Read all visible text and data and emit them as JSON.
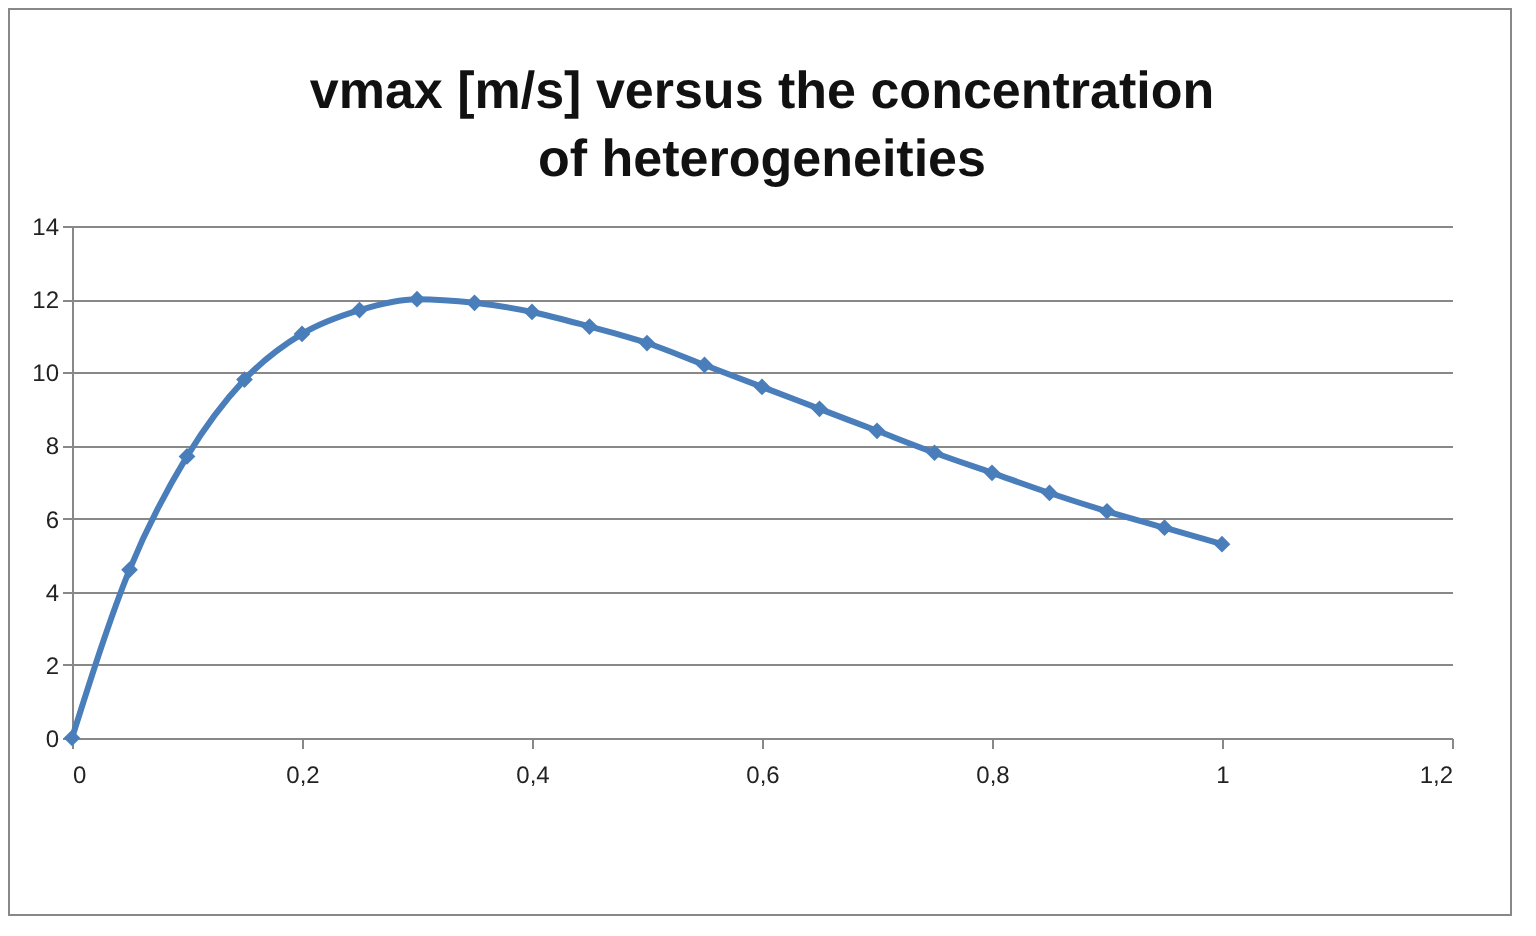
{
  "chart_data": {
    "type": "line",
    "title": "vmax [m/s] versus the concentration of heterogeneities",
    "x": [
      0,
      0.05,
      0.1,
      0.15,
      0.2,
      0.25,
      0.3,
      0.35,
      0.4,
      0.45,
      0.5,
      0.55,
      0.6,
      0.65,
      0.7,
      0.75,
      0.8,
      0.85,
      0.9,
      0.95,
      1
    ],
    "series": [
      {
        "color": "#4a7ebb",
        "values": [
          0,
          4.6,
          7.7,
          9.8,
          11.05,
          11.7,
          12,
          11.9,
          11.65,
          11.25,
          10.8,
          10.2,
          9.6,
          9,
          8.4,
          7.8,
          7.25,
          6.7,
          6.2,
          5.75,
          5.3
        ]
      }
    ],
    "xlim": [
      0,
      1.2
    ],
    "xticks": [
      0,
      {
        "value": 0.2,
        "label": "0,2"
      },
      {
        "value": 0.4,
        "label": "0,4"
      },
      {
        "value": 0.6,
        "label": "0,6"
      },
      {
        "value": 0.8,
        "label": "0,8"
      },
      1,
      {
        "value": 1.2,
        "label": "1,2"
      }
    ],
    "ylim": [
      0,
      14
    ],
    "yticks": [
      0,
      2,
      4,
      6,
      8,
      10,
      12,
      14
    ],
    "grid": "y",
    "legend": false,
    "marker": "diamond",
    "line_style": "solid"
  }
}
